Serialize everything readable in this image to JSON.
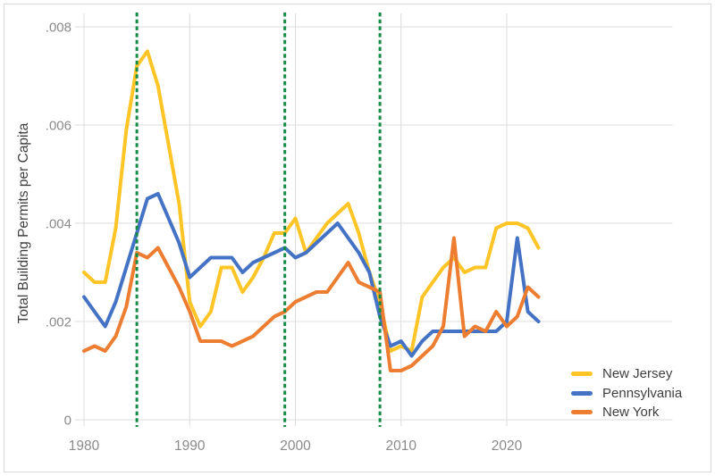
{
  "figure": {
    "y_axis_title": "Total Building Permits per Capita"
  },
  "legend": {
    "position": "lower-right",
    "items": [
      {
        "label": "New Jersey",
        "color": "#FFC425"
      },
      {
        "label": "Pennsylvania",
        "color": "#4472C4"
      },
      {
        "label": "New York",
        "color": "#ED7D31"
      }
    ]
  },
  "chart_data": {
    "type": "line",
    "title": "",
    "xlabel": "",
    "ylabel": "Total Building Permits per Capita",
    "grid": true,
    "legend_position": "lower right",
    "xlim": [
      1980,
      2036
    ],
    "ylim": [
      0,
      0.0083
    ],
    "x_ticks": [
      1980,
      1990,
      2000,
      2010,
      2020
    ],
    "y_ticks": [
      {
        "value": 0,
        "label": "0"
      },
      {
        "value": 0.002,
        "label": ".002"
      },
      {
        "value": 0.004,
        "label": ".004"
      },
      {
        "value": 0.006,
        "label": ".006"
      },
      {
        "value": 0.008,
        "label": ".008"
      }
    ],
    "x": [
      1980,
      1981,
      1982,
      1983,
      1984,
      1985,
      1986,
      1987,
      1988,
      1989,
      1990,
      1991,
      1992,
      1993,
      1994,
      1995,
      1996,
      1997,
      1998,
      1999,
      2000,
      2001,
      2002,
      2003,
      2004,
      2005,
      2006,
      2007,
      2008,
      2009,
      2010,
      2011,
      2012,
      2013,
      2014,
      2015,
      2016,
      2017,
      2018,
      2019,
      2020,
      2021,
      2022,
      2023
    ],
    "series": [
      {
        "name": "New Jersey",
        "color": "#FFC425",
        "values": [
          0.003,
          0.0028,
          0.0028,
          0.0039,
          0.0059,
          0.0072,
          0.0075,
          0.0068,
          0.0056,
          0.0044,
          0.0024,
          0.0019,
          0.0022,
          0.0031,
          0.0031,
          0.0026,
          0.0029,
          0.0033,
          0.0038,
          0.0038,
          0.0041,
          0.0034,
          0.0037,
          0.004,
          0.0042,
          0.0044,
          0.0038,
          0.003,
          0.0024,
          0.0014,
          0.0015,
          0.0014,
          0.0025,
          0.0028,
          0.0031,
          0.0033,
          0.003,
          0.0031,
          0.0031,
          0.0039,
          0.004,
          0.004,
          0.0039,
          0.0035
        ]
      },
      {
        "name": "Pennsylvania",
        "color": "#4472C4",
        "values": [
          0.0025,
          0.0022,
          0.0019,
          0.0024,
          0.0031,
          0.0038,
          0.0045,
          0.0046,
          0.0041,
          0.0036,
          0.0029,
          0.0031,
          0.0033,
          0.0033,
          0.0033,
          0.003,
          0.0032,
          0.0033,
          0.0034,
          0.0035,
          0.0033,
          0.0034,
          0.0036,
          0.0038,
          0.004,
          0.0037,
          0.0034,
          0.003,
          0.0021,
          0.0015,
          0.0016,
          0.0013,
          0.0016,
          0.0018,
          0.0018,
          0.0018,
          0.0018,
          0.0018,
          0.0018,
          0.0018,
          0.002,
          0.0037,
          0.0022,
          0.002
        ]
      },
      {
        "name": "New York",
        "color": "#ED7D31",
        "values": [
          0.0014,
          0.0015,
          0.0014,
          0.0017,
          0.0023,
          0.0034,
          0.0033,
          0.0035,
          0.0031,
          0.0027,
          0.0022,
          0.0016,
          0.0016,
          0.0016,
          0.0015,
          0.0016,
          0.0017,
          0.0019,
          0.0021,
          0.0022,
          0.0024,
          0.0025,
          0.0026,
          0.0026,
          0.0029,
          0.0032,
          0.0028,
          0.0027,
          0.0026,
          0.001,
          0.001,
          0.0011,
          0.0013,
          0.0015,
          0.0019,
          0.0037,
          0.0017,
          0.0019,
          0.0018,
          0.0022,
          0.0019,
          0.0021,
          0.0027,
          0.0025
        ]
      }
    ],
    "reference_lines": {
      "style": "dashed",
      "color": "#168D47",
      "x_values": [
        1985,
        1999,
        2008
      ]
    },
    "colors": {
      "gridline": "#DCDCDC",
      "axis_text": "#8A8A8A",
      "label_text": "#3F3F3F",
      "frame": "#D9D9D9",
      "background": "#FFFFFF"
    }
  }
}
